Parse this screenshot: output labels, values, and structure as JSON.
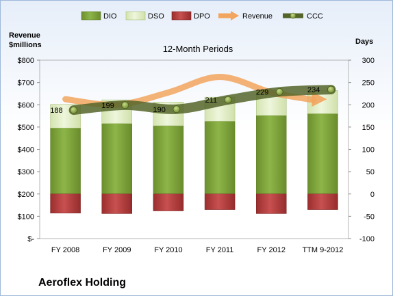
{
  "chart_data": {
    "type": "bar",
    "title": "12-Month Periods",
    "company": "Aeroflex Holding",
    "left_axis_title": [
      "Revenue",
      "$millions"
    ],
    "right_axis_title": "Days",
    "categories": [
      "FY 2008",
      "FY 2009",
      "FY 2010",
      "FY 2011",
      "FY 2012",
      "TTM 9-2012"
    ],
    "left_axis": {
      "ylim": [
        0,
        800
      ],
      "ticks": [
        0,
        100,
        200,
        300,
        400,
        500,
        600,
        700,
        800
      ],
      "tick_labels": [
        "$-",
        "$100",
        "$200",
        "$300",
        "$400",
        "$500",
        "$600",
        "$700",
        "$800"
      ]
    },
    "right_axis": {
      "ylim": [
        -100,
        300
      ],
      "ticks": [
        -100,
        -50,
        0,
        50,
        100,
        150,
        200,
        250,
        300
      ],
      "tick_labels": [
        "-100",
        "-50",
        "0",
        "50",
        "100",
        "150",
        "200",
        "250",
        "300"
      ]
    },
    "grid": false,
    "legend_position": "top",
    "legend": [
      "DIO",
      "DSO",
      "DPO",
      "Revenue",
      "CCC"
    ],
    "series": [
      {
        "name": "DIO",
        "axis": "right",
        "kind": "stacked-bar",
        "color": "#7da23a",
        "values": [
          148,
          158,
          153,
          163,
          176,
          180
        ]
      },
      {
        "name": "DSO",
        "axis": "right",
        "kind": "stacked-bar",
        "color": "#e0ecc6",
        "values": [
          53,
          53,
          53,
          54,
          53,
          52
        ]
      },
      {
        "name": "DPO",
        "axis": "right",
        "kind": "stacked-bar-negative",
        "color": "#b03a3a",
        "values": [
          -43,
          -44,
          -38,
          -35,
          -44,
          -35
        ]
      },
      {
        "name": "Revenue",
        "axis": "left",
        "kind": "line",
        "color": "#f0a060",
        "values": [
          625,
          600,
          655,
          725,
          655,
          625
        ]
      },
      {
        "name": "CCC",
        "axis": "right",
        "kind": "line",
        "color": "#5a6e2e",
        "values": [
          188,
          199,
          190,
          211,
          229,
          234
        ]
      }
    ],
    "data_labels": [
      "188",
      "199",
      "190",
      "211",
      "229",
      "234"
    ]
  }
}
